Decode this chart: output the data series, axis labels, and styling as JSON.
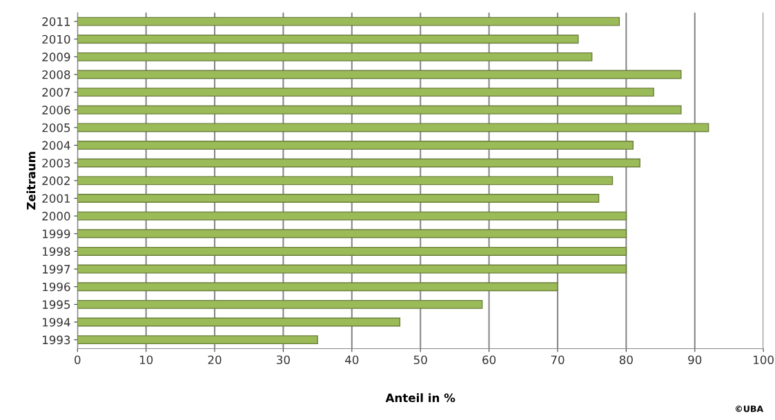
{
  "chart_data": {
    "type": "bar",
    "orientation": "horizontal",
    "categories": [
      "2011",
      "2010",
      "2009",
      "2008",
      "2007",
      "2006",
      "2005",
      "2004",
      "2003",
      "2002",
      "2001",
      "2000",
      "1999",
      "1998",
      "1997",
      "1996",
      "1995",
      "1994",
      "1993"
    ],
    "values": [
      79,
      73,
      75,
      88,
      84,
      88,
      92,
      81,
      82,
      78,
      76,
      80,
      80,
      80,
      80,
      70,
      59,
      47,
      35
    ],
    "color": "#9bbb59",
    "xlabel": "Anteil in %",
    "ylabel": "Zeitraum",
    "xlim": [
      0,
      100
    ],
    "xticks": [
      0,
      10,
      20,
      30,
      40,
      50,
      60,
      70,
      80,
      90,
      100
    ],
    "grid": "x",
    "annotations": [
      "©UBA"
    ]
  }
}
